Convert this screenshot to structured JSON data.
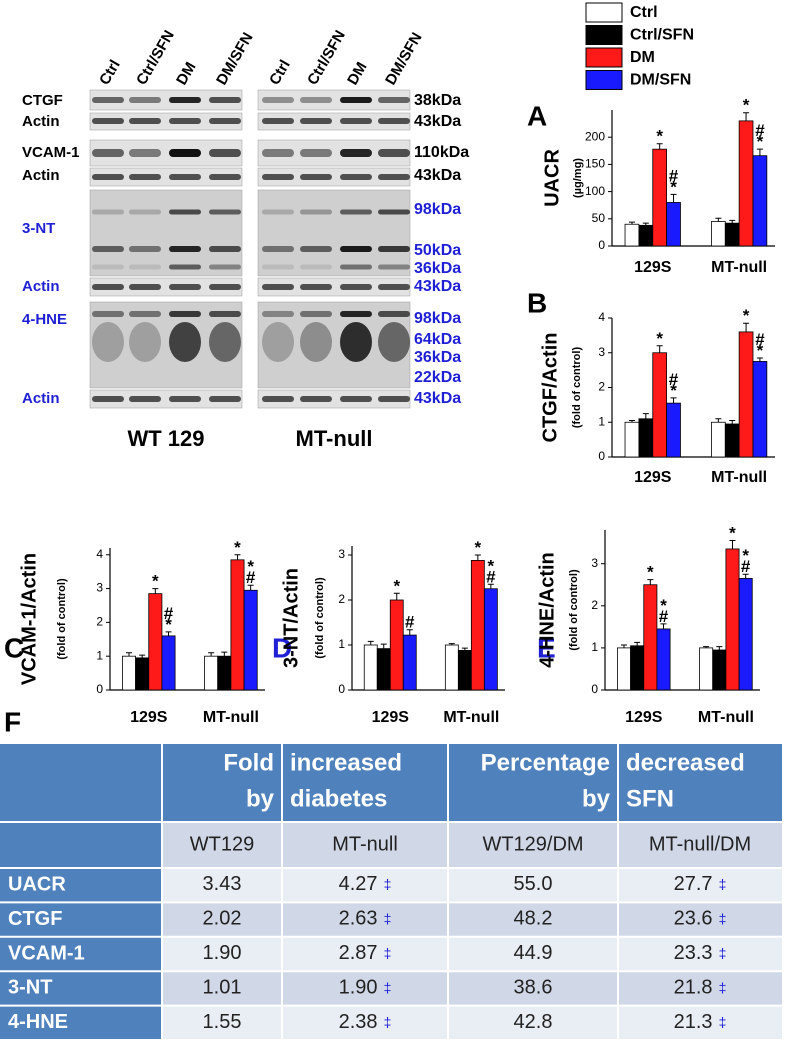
{
  "blot": {
    "lanes": [
      "Ctrl",
      "Ctrl/SFN",
      "DM",
      "DM/SFN"
    ],
    "groups": [
      "WT 129",
      "MT-null"
    ],
    "rows": [
      {
        "label": "CTGF",
        "color": "#000000",
        "kda": [
          "38kDa"
        ]
      },
      {
        "label": "Actin",
        "color": "#000000",
        "kda": [
          "43kDa"
        ]
      },
      {
        "label": "VCAM-1",
        "color": "#000000",
        "kda": [
          "110kDa"
        ]
      },
      {
        "label": "Actin",
        "color": "#000000",
        "kda": [
          "43kDa"
        ]
      },
      {
        "label": "3-NT",
        "color": "#1f1fd6",
        "kda": [
          "98kDa",
          "50kDa",
          "36kDa"
        ]
      },
      {
        "label": "Actin",
        "color": "#1f1fd6",
        "kda": [
          "43kDa"
        ]
      },
      {
        "label": "4-HNE",
        "color": "#1f1fd6",
        "kda": [
          "98kDa",
          "64kDa",
          "36kDa",
          "22kDa"
        ]
      },
      {
        "label": "Actin",
        "color": "#1f1fd6",
        "kda": [
          "43kDa"
        ]
      }
    ]
  },
  "legend": [
    {
      "name": "Ctrl",
      "color": "#ffffff"
    },
    {
      "name": "Ctrl/SFN",
      "color": "#000000"
    },
    {
      "name": "DM",
      "color": "#ff1a1a"
    },
    {
      "name": "DM/SFN",
      "color": "#1a1aff"
    }
  ],
  "chart_data": [
    {
      "type": "bar",
      "panel": "A",
      "panel_color": "#000000",
      "ylabel": "UACR",
      "ysublabel": "(µg/mg)",
      "categories": [
        "129S",
        "MT-null"
      ],
      "ylim": [
        0,
        250
      ],
      "yticks": [
        0,
        50,
        100,
        150,
        200
      ],
      "series": [
        {
          "values": [
            40,
            45
          ],
          "errors": [
            4,
            6
          ],
          "sig": [
            null,
            null
          ]
        },
        {
          "values": [
            38,
            42
          ],
          "errors": [
            4,
            5
          ],
          "sig": [
            null,
            null
          ]
        },
        {
          "values": [
            178,
            230
          ],
          "errors": [
            10,
            15
          ],
          "sig": [
            "*",
            "*"
          ]
        },
        {
          "values": [
            80,
            166
          ],
          "errors": [
            15,
            12
          ],
          "sig": [
            "#*",
            "#*"
          ]
        }
      ]
    },
    {
      "type": "bar",
      "panel": "B",
      "panel_color": "#000000",
      "ylabel": "CTGF/Actin",
      "ysublabel": "(fold of control)",
      "categories": [
        "129S",
        "MT-null"
      ],
      "ylim": [
        0,
        4
      ],
      "yticks": [
        0,
        1,
        2,
        3,
        4
      ],
      "series": [
        {
          "values": [
            1.0,
            1.0
          ],
          "errors": [
            0.05,
            0.1
          ],
          "sig": [
            null,
            null
          ]
        },
        {
          "values": [
            1.1,
            0.95
          ],
          "errors": [
            0.15,
            0.1
          ],
          "sig": [
            null,
            null
          ]
        },
        {
          "values": [
            3.0,
            3.6
          ],
          "errors": [
            0.2,
            0.25
          ],
          "sig": [
            "*",
            "*"
          ]
        },
        {
          "values": [
            1.55,
            2.75
          ],
          "errors": [
            0.15,
            0.1
          ],
          "sig": [
            "#*",
            "#*"
          ]
        }
      ]
    },
    {
      "type": "bar",
      "panel": "C",
      "panel_color": "#000000",
      "ylabel": "VCAM-1/Actin",
      "ysublabel": "(fold of control)",
      "categories": [
        "129S",
        "MT-null"
      ],
      "ylim": [
        0,
        4.2
      ],
      "yticks": [
        0,
        1,
        2,
        3,
        4
      ],
      "series": [
        {
          "values": [
            1.0,
            1.0
          ],
          "errors": [
            0.1,
            0.1
          ],
          "sig": [
            null,
            null
          ]
        },
        {
          "values": [
            0.95,
            1.0
          ],
          "errors": [
            0.08,
            0.12
          ],
          "sig": [
            null,
            null
          ]
        },
        {
          "values": [
            2.85,
            3.85
          ],
          "errors": [
            0.15,
            0.15
          ],
          "sig": [
            "*",
            "*"
          ]
        },
        {
          "values": [
            1.6,
            2.95
          ],
          "errors": [
            0.12,
            0.15
          ],
          "sig": [
            "#*",
            "*#"
          ]
        }
      ]
    },
    {
      "type": "bar",
      "panel": "D",
      "panel_color": "#1f1fd6",
      "ylabel": "3-NT/Actin",
      "ysublabel": "(fold of control)",
      "categories": [
        "129S",
        "MT-null"
      ],
      "ylim": [
        0,
        3.2
      ],
      "yticks": [
        0,
        1,
        2,
        3
      ],
      "series": [
        {
          "values": [
            1.0,
            1.0
          ],
          "errors": [
            0.08,
            0.03
          ],
          "sig": [
            null,
            null
          ]
        },
        {
          "values": [
            0.92,
            0.88
          ],
          "errors": [
            0.1,
            0.05
          ],
          "sig": [
            null,
            null
          ]
        },
        {
          "values": [
            2.0,
            2.88
          ],
          "errors": [
            0.15,
            0.12
          ],
          "sig": [
            "*",
            "*"
          ]
        },
        {
          "values": [
            1.22,
            2.25
          ],
          "errors": [
            0.12,
            0.1
          ],
          "sig": [
            "#",
            "*#"
          ]
        }
      ]
    },
    {
      "type": "bar",
      "panel": "E",
      "panel_color": "#1f1fd6",
      "ylabel": "4-HNE/Actin",
      "ysublabel": "(fold of control)",
      "categories": [
        "129S",
        "MT-null"
      ],
      "ylim": [
        0,
        3.8
      ],
      "yticks": [
        0,
        1,
        2,
        3
      ],
      "series": [
        {
          "values": [
            1.0,
            1.0
          ],
          "errors": [
            0.07,
            0.03
          ],
          "sig": [
            null,
            null
          ]
        },
        {
          "values": [
            1.05,
            0.95
          ],
          "errors": [
            0.08,
            0.08
          ],
          "sig": [
            null,
            null
          ]
        },
        {
          "values": [
            2.5,
            3.35
          ],
          "errors": [
            0.12,
            0.2
          ],
          "sig": [
            "*",
            "*"
          ]
        },
        {
          "values": [
            1.45,
            2.65
          ],
          "errors": [
            0.12,
            0.1
          ],
          "sig": [
            "*#",
            "*#"
          ]
        }
      ]
    }
  ],
  "table": {
    "panel": "F",
    "header": [
      [
        "Fold",
        "by"
      ],
      [
        "increased",
        "diabetes"
      ],
      [
        "Percentage",
        "by"
      ],
      [
        "decreased",
        "SFN"
      ]
    ],
    "subheader": [
      "WT129",
      "MT-null",
      "WT129/DM",
      "MT-null/DM"
    ],
    "rows": [
      {
        "label": "UACR",
        "cells": [
          [
            "3.43"
          ],
          [
            "4.27",
            "‡"
          ],
          [
            "55.0"
          ],
          [
            "27.7",
            "‡"
          ]
        ]
      },
      {
        "label": "CTGF",
        "cells": [
          [
            "2.02"
          ],
          [
            "2.63",
            "‡"
          ],
          [
            "48.2"
          ],
          [
            "23.6",
            "‡"
          ]
        ]
      },
      {
        "label": "VCAM-1",
        "cells": [
          [
            "1.90"
          ],
          [
            "2.87",
            "‡"
          ],
          [
            "44.9"
          ],
          [
            "23.3",
            "‡"
          ]
        ]
      },
      {
        "label": "3-NT",
        "cells": [
          [
            "1.01"
          ],
          [
            "1.90",
            "‡"
          ],
          [
            "38.6"
          ],
          [
            "21.8",
            "‡"
          ]
        ]
      },
      {
        "label": "4-HNE",
        "cells": [
          [
            "1.55"
          ],
          [
            "2.38",
            "‡"
          ],
          [
            "42.8"
          ],
          [
            "21.3",
            "‡"
          ]
        ]
      }
    ]
  }
}
